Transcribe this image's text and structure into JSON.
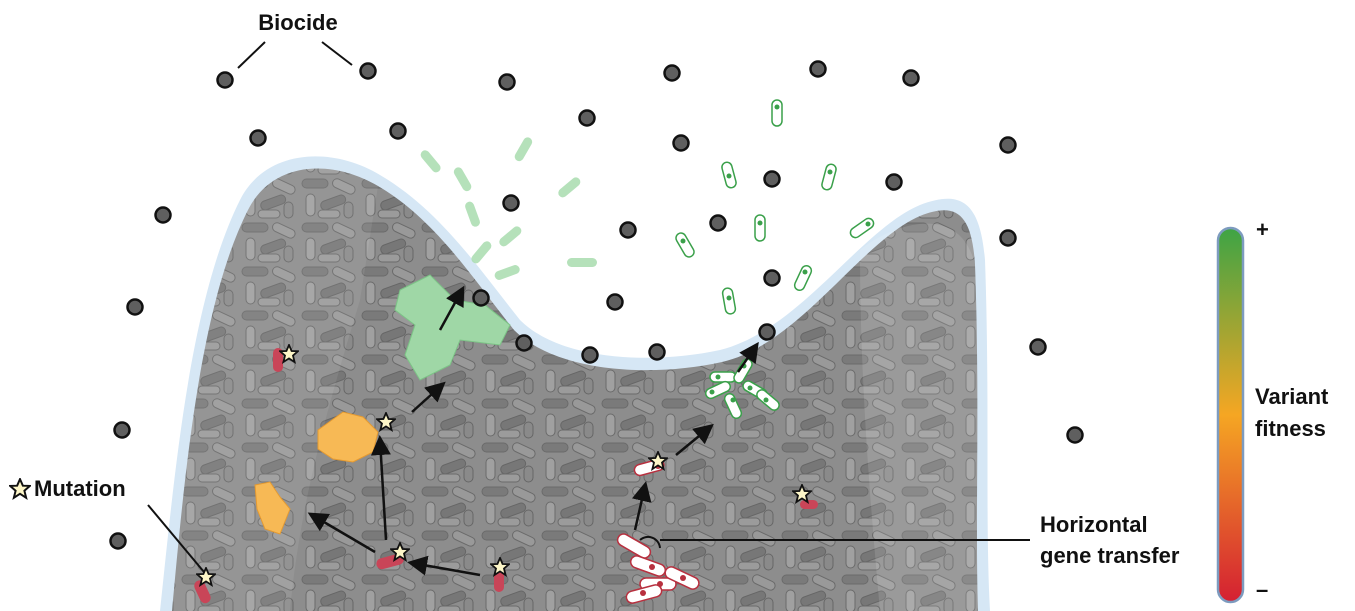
{
  "labels": {
    "biocide": "Biocide",
    "mutation": "Mutation",
    "hgt": [
      "Horizontal",
      "gene transfer"
    ],
    "fitness": {
      "title": [
        "Variant",
        "fitness"
      ],
      "high": "+",
      "low": "–"
    }
  }
}
